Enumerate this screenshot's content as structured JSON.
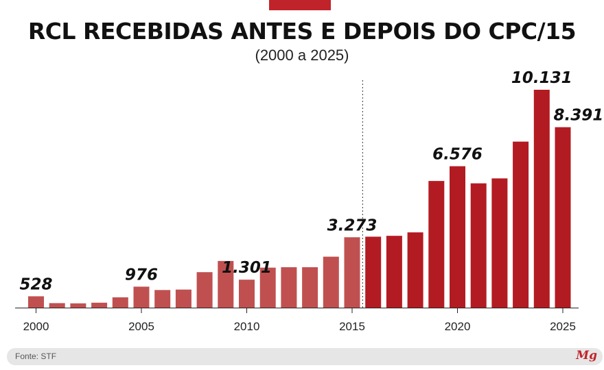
{
  "header": {
    "title": "RCL RECEBIDAS ANTES E DEPOIS DO CPC/15",
    "subtitle": "(2000 a 2025)"
  },
  "colors": {
    "before": "#c05050",
    "after": "#b31b22",
    "accent": "#c0242a"
  },
  "chart_data": {
    "type": "bar",
    "title": "RCL RECEBIDAS ANTES E DEPOIS DO CPC/15",
    "subtitle": "(2000 a 2025)",
    "categories": [
      2000,
      2001,
      2002,
      2003,
      2004,
      2005,
      2006,
      2007,
      2008,
      2009,
      2010,
      2011,
      2012,
      2013,
      2014,
      2015,
      2016,
      2017,
      2018,
      2019,
      2020,
      2021,
      2022,
      2023,
      2024,
      2025
    ],
    "values": [
      528,
      210,
      200,
      230,
      480,
      976,
      820,
      840,
      1650,
      2170,
      1301,
      1860,
      1880,
      1880,
      2370,
      3273,
      3300,
      3340,
      3500,
      5890,
      6576,
      5780,
      6010,
      7720,
      10131,
      8391
    ],
    "data_labels": [
      {
        "x": 2000,
        "text": "528"
      },
      {
        "x": 2005,
        "text": "976"
      },
      {
        "x": 2010,
        "text": "1.301"
      },
      {
        "x": 2015,
        "text": "3.273"
      },
      {
        "x": 2020,
        "text": "6.576"
      },
      {
        "x": 2024,
        "text": "10.131"
      },
      {
        "x": 2025,
        "text": "8.391"
      }
    ],
    "x_ticks": [
      "2000",
      "2005",
      "2010",
      "2015",
      "2020",
      "2025"
    ],
    "divider_after": 2015,
    "ylim": [
      0,
      10500
    ],
    "xlabel": "",
    "ylabel": "",
    "grid": false
  },
  "footer": {
    "source": "Fonte: STF",
    "logo": "Mg"
  }
}
